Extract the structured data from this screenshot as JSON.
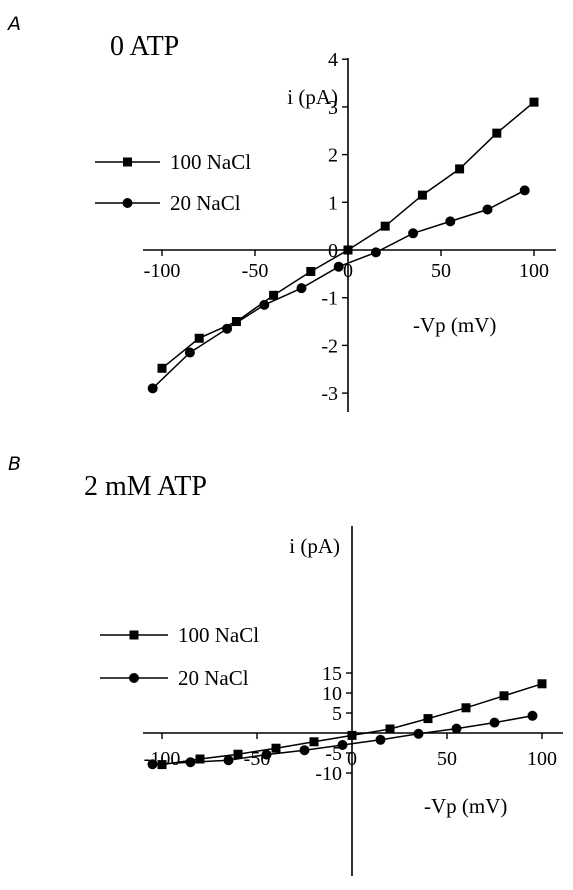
{
  "chart_data": [
    {
      "panel": "A",
      "title": "0 ATP",
      "type": "line",
      "xlabel": "-Vp (mV)",
      "ylabel": "i (pA)",
      "xlim": [
        -105,
        105
      ],
      "ylim": [
        -3,
        4
      ],
      "x_ticks": [
        -100,
        -50,
        0,
        50,
        100
      ],
      "x_tick_labels": [
        "-100",
        "-50",
        "0",
        "50",
        "100"
      ],
      "y_ticks": [
        -3,
        -2,
        -1,
        0,
        1,
        2,
        3,
        4
      ],
      "y_tick_labels": [
        "-3",
        "-2",
        "-1",
        "0",
        "1",
        "2",
        "3",
        "4"
      ],
      "legend_position": "left",
      "series": [
        {
          "name": "100 NaCl",
          "marker": "square",
          "x": [
            -100,
            -80,
            -60,
            -40,
            -20,
            0,
            20,
            40,
            60,
            80,
            100
          ],
          "y": [
            -2.48,
            -1.85,
            -1.5,
            -0.95,
            -0.45,
            0.0,
            0.5,
            1.15,
            1.7,
            2.45,
            3.1
          ]
        },
        {
          "name": "20 NaCl",
          "marker": "circle",
          "x": [
            -105,
            -85,
            -65,
            -45,
            -25,
            -5,
            15,
            35,
            55,
            75,
            95
          ],
          "y": [
            -2.9,
            -2.15,
            -1.65,
            -1.15,
            -0.8,
            -0.35,
            -0.05,
            0.35,
            0.6,
            0.85,
            1.25
          ]
        }
      ]
    },
    {
      "panel": "B",
      "title": "2 mM ATP",
      "type": "line",
      "xlabel": "-Vp (mV)",
      "ylabel": "i (pA)",
      "xlim": [
        -105,
        105
      ],
      "ylim": [
        -10,
        15
      ],
      "x_ticks": [
        -100,
        -50,
        0,
        50,
        100
      ],
      "x_tick_labels": [
        "-100",
        "-50",
        "0",
        "50",
        "100"
      ],
      "y_ticks": [
        -10,
        -5,
        0,
        5,
        10,
        15
      ],
      "y_tick_labels": [
        "-10",
        "-5",
        "",
        "5",
        "10",
        "15"
      ],
      "legend_position": "left",
      "series": [
        {
          "name": "100 NaCl",
          "marker": "square",
          "x": [
            -100,
            -80,
            -60,
            -40,
            -20,
            0,
            20,
            40,
            60,
            80,
            100
          ],
          "y": [
            -7.9,
            -6.5,
            -5.3,
            -3.8,
            -2.2,
            -0.6,
            1.0,
            3.6,
            6.3,
            9.3,
            12.3
          ]
        },
        {
          "name": "20 NaCl",
          "marker": "circle",
          "x": [
            -105,
            -85,
            -65,
            -45,
            -25,
            -5,
            15,
            35,
            55,
            75,
            95
          ],
          "y": [
            -7.8,
            -7.3,
            -6.8,
            -5.4,
            -4.3,
            -3.0,
            -1.7,
            -0.2,
            1.1,
            2.6,
            4.3
          ]
        }
      ]
    }
  ]
}
